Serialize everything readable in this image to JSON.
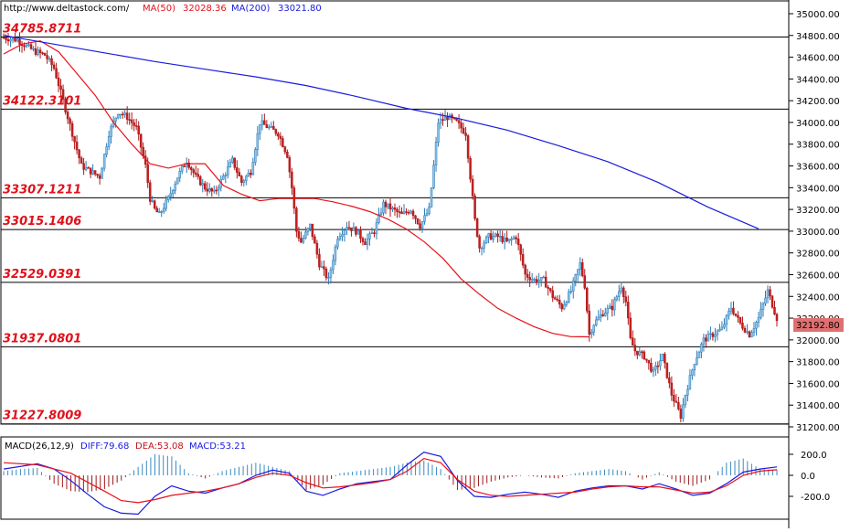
{
  "header": {
    "url": "http://www.deltastock.com/",
    "ma50_label": "MA(50)",
    "ma50_value": "32028.36",
    "ma200_label": "MA(200)",
    "ma200_value": "33021.80",
    "colors": {
      "ma50": "#e8101a",
      "ma200": "#1a1ae0",
      "url": "#000000"
    }
  },
  "macd_header": {
    "name": "MACD(26,12,9)",
    "diff": "DIFF:79.68",
    "dea": "DEA:53.08",
    "macd": "MACD:53.21",
    "colors": {
      "diff": "#1a1ae0",
      "dea": "#e8101a",
      "macd": "#1a1ae0"
    }
  },
  "current_price": "32192.80",
  "chart_data": [
    {
      "type": "candlestick",
      "title": "",
      "ylim": [
        31120,
        35080
      ],
      "y_ticks": [
        "35000.00",
        "34800.00",
        "34600.00",
        "34400.00",
        "34200.00",
        "34000.00",
        "33800.00",
        "33600.00",
        "33400.00",
        "33200.00",
        "33000.00",
        "32800.00",
        "32600.00",
        "32400.00",
        "32200.00",
        "32000.00",
        "31800.00",
        "31600.00",
        "31400.00",
        "31200.00"
      ],
      "levels": [
        "34785.8711",
        "34122.3101",
        "33307.1211",
        "33015.1406",
        "32529.0391",
        "31937.0801",
        "31227.8009"
      ],
      "price_path": [
        [
          0,
          34780
        ],
        [
          6,
          34760
        ],
        [
          10,
          34700
        ],
        [
          14,
          34650
        ],
        [
          18,
          34620
        ],
        [
          22,
          34500
        ],
        [
          26,
          34200
        ],
        [
          30,
          33900
        ],
        [
          34,
          33600
        ],
        [
          38,
          33550
        ],
        [
          42,
          33500
        ],
        [
          46,
          33900
        ],
        [
          50,
          34100
        ],
        [
          54,
          34050
        ],
        [
          58,
          33950
        ],
        [
          62,
          33600
        ],
        [
          64,
          33300
        ],
        [
          66,
          33200
        ],
        [
          68,
          33150
        ],
        [
          72,
          33300
        ],
        [
          76,
          33500
        ],
        [
          80,
          33650
        ],
        [
          84,
          33500
        ],
        [
          88,
          33400
        ],
        [
          92,
          33350
        ],
        [
          96,
          33500
        ],
        [
          100,
          33650
        ],
        [
          104,
          33450
        ],
        [
          108,
          33550
        ],
        [
          112,
          34000
        ],
        [
          116,
          33950
        ],
        [
          120,
          33900
        ],
        [
          124,
          33700
        ],
        [
          126,
          33400
        ],
        [
          128,
          33000
        ],
        [
          130,
          32900
        ],
        [
          134,
          33050
        ],
        [
          138,
          32700
        ],
        [
          142,
          32550
        ],
        [
          146,
          32950
        ],
        [
          150,
          33050
        ],
        [
          154,
          33000
        ],
        [
          158,
          32900
        ],
        [
          162,
          33000
        ],
        [
          166,
          33250
        ],
        [
          170,
          33200
        ],
        [
          174,
          33150
        ],
        [
          178,
          33200
        ],
        [
          182,
          33050
        ],
        [
          186,
          33200
        ],
        [
          190,
          34000
        ],
        [
          194,
          34050
        ],
        [
          198,
          34000
        ],
        [
          202,
          33900
        ],
        [
          204,
          33500
        ],
        [
          206,
          33100
        ],
        [
          208,
          32850
        ],
        [
          212,
          32950
        ],
        [
          216,
          32950
        ],
        [
          220,
          32900
        ],
        [
          224,
          32950
        ],
        [
          228,
          32600
        ],
        [
          232,
          32550
        ],
        [
          236,
          32550
        ],
        [
          240,
          32400
        ],
        [
          244,
          32300
        ],
        [
          248,
          32450
        ],
        [
          252,
          32700
        ],
        [
          254,
          32500
        ],
        [
          256,
          32050
        ],
        [
          258,
          32150
        ],
        [
          262,
          32250
        ],
        [
          266,
          32300
        ],
        [
          270,
          32500
        ],
        [
          272,
          32350
        ],
        [
          274,
          32000
        ],
        [
          276,
          31900
        ],
        [
          280,
          31850
        ],
        [
          284,
          31700
        ],
        [
          288,
          31850
        ],
        [
          292,
          31500
        ],
        [
          296,
          31300
        ],
        [
          298,
          31500
        ],
        [
          302,
          31800
        ],
        [
          306,
          32000
        ],
        [
          310,
          32050
        ],
        [
          314,
          32100
        ],
        [
          318,
          32300
        ],
        [
          322,
          32150
        ],
        [
          326,
          32050
        ],
        [
          330,
          32200
        ],
        [
          334,
          32450
        ],
        [
          338,
          32200
        ]
      ],
      "series": [
        {
          "name": "MA(50)",
          "values": [
            [
              0,
              34630
            ],
            [
              8,
              34720
            ],
            [
              16,
              34750
            ],
            [
              24,
              34650
            ],
            [
              32,
              34450
            ],
            [
              40,
              34250
            ],
            [
              48,
              34000
            ],
            [
              56,
              33800
            ],
            [
              64,
              33620
            ],
            [
              72,
              33580
            ],
            [
              80,
              33620
            ],
            [
              88,
              33620
            ],
            [
              96,
              33420
            ],
            [
              104,
              33340
            ],
            [
              112,
              33280
            ],
            [
              120,
              33300
            ],
            [
              128,
              33300
            ],
            [
              136,
              33300
            ],
            [
              144,
              33270
            ],
            [
              152,
              33230
            ],
            [
              160,
              33180
            ],
            [
              168,
              33110
            ],
            [
              176,
              33020
            ],
            [
              184,
              32900
            ],
            [
              192,
              32750
            ],
            [
              200,
              32560
            ],
            [
              208,
              32420
            ],
            [
              216,
              32290
            ],
            [
              224,
              32200
            ],
            [
              232,
              32120
            ],
            [
              240,
              32060
            ],
            [
              248,
              32030
            ],
            [
              256,
              32028
            ]
          ]
        },
        {
          "name": "MA(200)",
          "values": [
            [
              0,
              34800
            ],
            [
              12,
              34720
            ],
            [
              24,
              34640
            ],
            [
              36,
              34560
            ],
            [
              48,
              34490
            ],
            [
              60,
              34420
            ],
            [
              72,
              34340
            ],
            [
              84,
              34240
            ],
            [
              96,
              34130
            ],
            [
              108,
              34040
            ],
            [
              120,
              33930
            ],
            [
              132,
              33790
            ],
            [
              144,
              33640
            ],
            [
              156,
              33450
            ],
            [
              168,
              33220
            ],
            [
              180,
              33022
            ]
          ]
        }
      ]
    },
    {
      "type": "macd",
      "title": "MACD(26,12,9)",
      "ylim": [
        -380,
        250
      ],
      "y_ticks": [
        "200.0",
        "0.0",
        "-200.0"
      ],
      "series": [
        {
          "name": "DIFF",
          "values": [
            [
              0,
              60
            ],
            [
              8,
              110
            ],
            [
              12,
              60
            ],
            [
              16,
              -50
            ],
            [
              20,
              -180
            ],
            [
              24,
              -300
            ],
            [
              28,
              -360
            ],
            [
              32,
              -370
            ],
            [
              36,
              -200
            ],
            [
              40,
              -100
            ],
            [
              44,
              -150
            ],
            [
              48,
              -170
            ],
            [
              52,
              -120
            ],
            [
              56,
              -80
            ],
            [
              60,
              0
            ],
            [
              64,
              50
            ],
            [
              68,
              20
            ],
            [
              72,
              -150
            ],
            [
              76,
              -190
            ],
            [
              80,
              -130
            ],
            [
              84,
              -80
            ],
            [
              88,
              -60
            ],
            [
              92,
              -40
            ],
            [
              96,
              100
            ],
            [
              100,
              220
            ],
            [
              104,
              180
            ],
            [
              108,
              -50
            ],
            [
              112,
              -200
            ],
            [
              116,
              -210
            ],
            [
              120,
              -180
            ],
            [
              124,
              -160
            ],
            [
              128,
              -180
            ],
            [
              132,
              -210
            ],
            [
              136,
              -150
            ],
            [
              140,
              -120
            ],
            [
              144,
              -100
            ],
            [
              148,
              -100
            ],
            [
              152,
              -130
            ],
            [
              156,
              -80
            ],
            [
              160,
              -130
            ],
            [
              164,
              -190
            ],
            [
              168,
              -170
            ],
            [
              172,
              -80
            ],
            [
              176,
              30
            ],
            [
              180,
              60
            ],
            [
              184,
              80
            ]
          ]
        },
        {
          "name": "DEA",
          "values": [
            [
              0,
              120
            ],
            [
              8,
              100
            ],
            [
              16,
              20
            ],
            [
              24,
              -150
            ],
            [
              28,
              -240
            ],
            [
              32,
              -260
            ],
            [
              36,
              -230
            ],
            [
              40,
              -190
            ],
            [
              44,
              -170
            ],
            [
              48,
              -150
            ],
            [
              52,
              -120
            ],
            [
              56,
              -80
            ],
            [
              60,
              -20
            ],
            [
              64,
              20
            ],
            [
              68,
              0
            ],
            [
              72,
              -70
            ],
            [
              76,
              -120
            ],
            [
              80,
              -110
            ],
            [
              84,
              -90
            ],
            [
              88,
              -70
            ],
            [
              92,
              -40
            ],
            [
              96,
              40
            ],
            [
              100,
              160
            ],
            [
              104,
              120
            ],
            [
              108,
              -40
            ],
            [
              112,
              -150
            ],
            [
              116,
              -190
            ],
            [
              120,
              -200
            ],
            [
              124,
              -190
            ],
            [
              128,
              -180
            ],
            [
              132,
              -170
            ],
            [
              136,
              -160
            ],
            [
              140,
              -130
            ],
            [
              144,
              -110
            ],
            [
              148,
              -100
            ],
            [
              152,
              -110
            ],
            [
              156,
              -110
            ],
            [
              160,
              -140
            ],
            [
              164,
              -170
            ],
            [
              168,
              -160
            ],
            [
              172,
              -100
            ],
            [
              176,
              0
            ],
            [
              180,
              40
            ],
            [
              184,
              53
            ]
          ]
        },
        {
          "name": "MACD",
          "values": [
            [
              0,
              40
            ],
            [
              4,
              60
            ],
            [
              8,
              70
            ],
            [
              12,
              -80
            ],
            [
              16,
              -150
            ],
            [
              20,
              -160
            ],
            [
              24,
              -130
            ],
            [
              28,
              -50
            ],
            [
              32,
              80
            ],
            [
              36,
              200
            ],
            [
              40,
              180
            ],
            [
              44,
              20
            ],
            [
              48,
              -30
            ],
            [
              52,
              40
            ],
            [
              56,
              80
            ],
            [
              60,
              120
            ],
            [
              64,
              80
            ],
            [
              68,
              40
            ],
            [
              72,
              -140
            ],
            [
              76,
              -90
            ],
            [
              80,
              20
            ],
            [
              84,
              40
            ],
            [
              88,
              60
            ],
            [
              92,
              80
            ],
            [
              96,
              120
            ],
            [
              100,
              140
            ],
            [
              104,
              60
            ],
            [
              108,
              -140
            ],
            [
              112,
              -120
            ],
            [
              116,
              -60
            ],
            [
              120,
              -20
            ],
            [
              124,
              0
            ],
            [
              128,
              -20
            ],
            [
              132,
              -30
            ],
            [
              136,
              20
            ],
            [
              140,
              40
            ],
            [
              144,
              60
            ],
            [
              148,
              40
            ],
            [
              152,
              -40
            ],
            [
              156,
              30
            ],
            [
              160,
              -60
            ],
            [
              164,
              -100
            ],
            [
              168,
              -40
            ],
            [
              172,
              120
            ],
            [
              176,
              160
            ],
            [
              180,
              60
            ],
            [
              184,
              53
            ]
          ]
        }
      ]
    }
  ]
}
